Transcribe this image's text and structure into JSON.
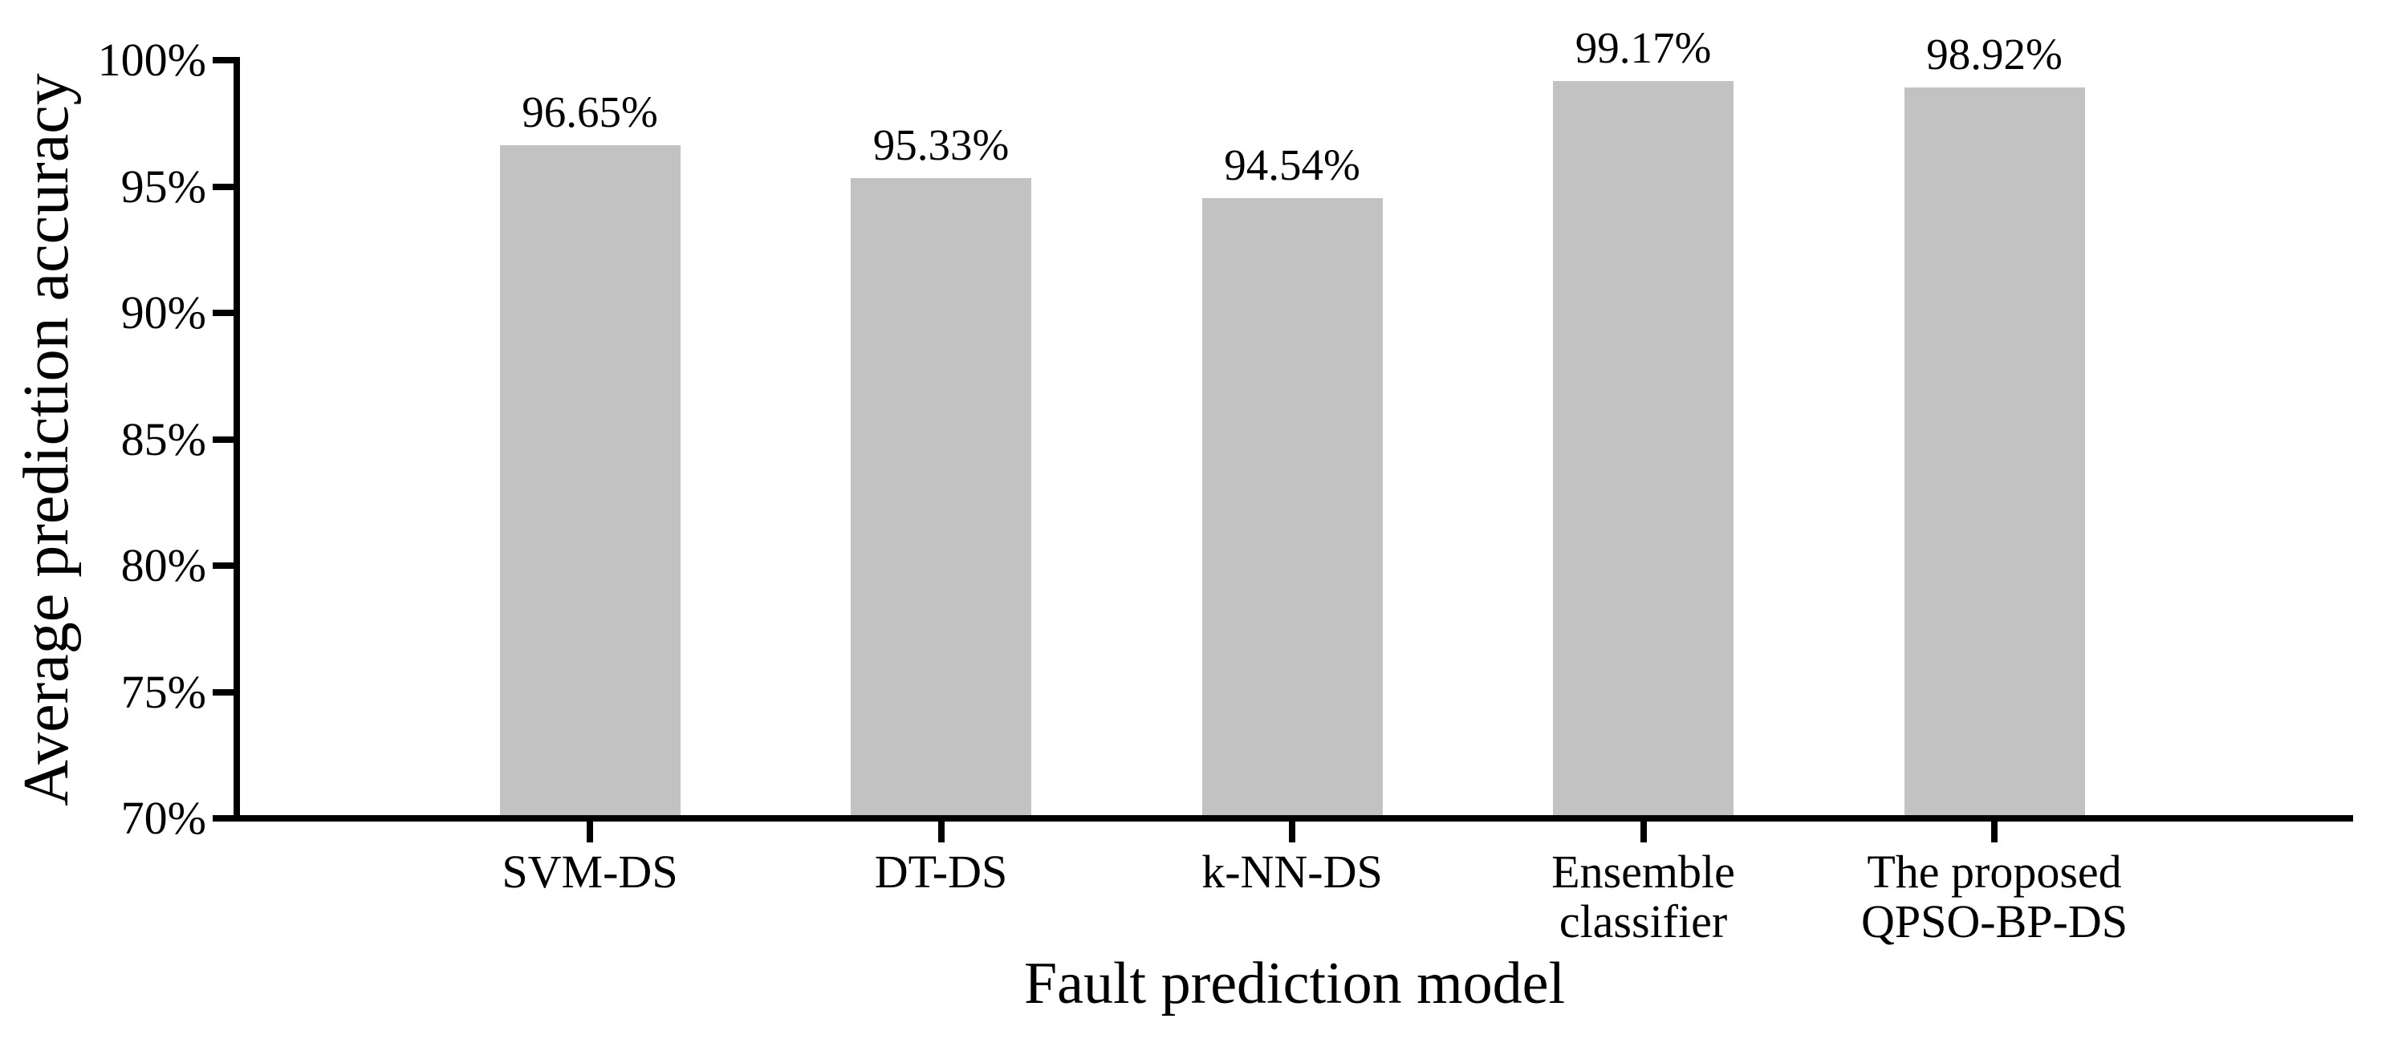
{
  "figure": {
    "background_color": "#ffffff"
  },
  "chart_data": {
    "type": "bar",
    "xlabel": "Fault prediction model",
    "ylabel": "Average prediction accuracy",
    "categories": [
      "SVM-DS",
      "DT-DS",
      "k-NN-DS",
      "Ensemble classifier",
      "The proposed QPSO-BP-DS"
    ],
    "category_lines": [
      [
        "SVM-DS"
      ],
      [
        "DT-DS"
      ],
      [
        "k-NN-DS"
      ],
      [
        "Ensemble",
        "classifier"
      ],
      [
        "The proposed",
        "QPSO-BP-DS"
      ]
    ],
    "values": [
      96.65,
      95.33,
      94.54,
      99.17,
      98.92
    ],
    "value_labels": [
      "96.65%",
      "95.33%",
      "94.54%",
      "99.17%",
      "98.92%"
    ],
    "ylim": [
      70,
      100
    ],
    "yticks": [
      70,
      75,
      80,
      85,
      90,
      95,
      100
    ],
    "ytick_labels": [
      "70%",
      "75%",
      "80%",
      "85%",
      "90%",
      "95%",
      "100%"
    ],
    "grid": false,
    "legend_position": "none",
    "bar_color": "#c2c2c2",
    "axis_color": "#000000",
    "text_color": "#000000"
  }
}
